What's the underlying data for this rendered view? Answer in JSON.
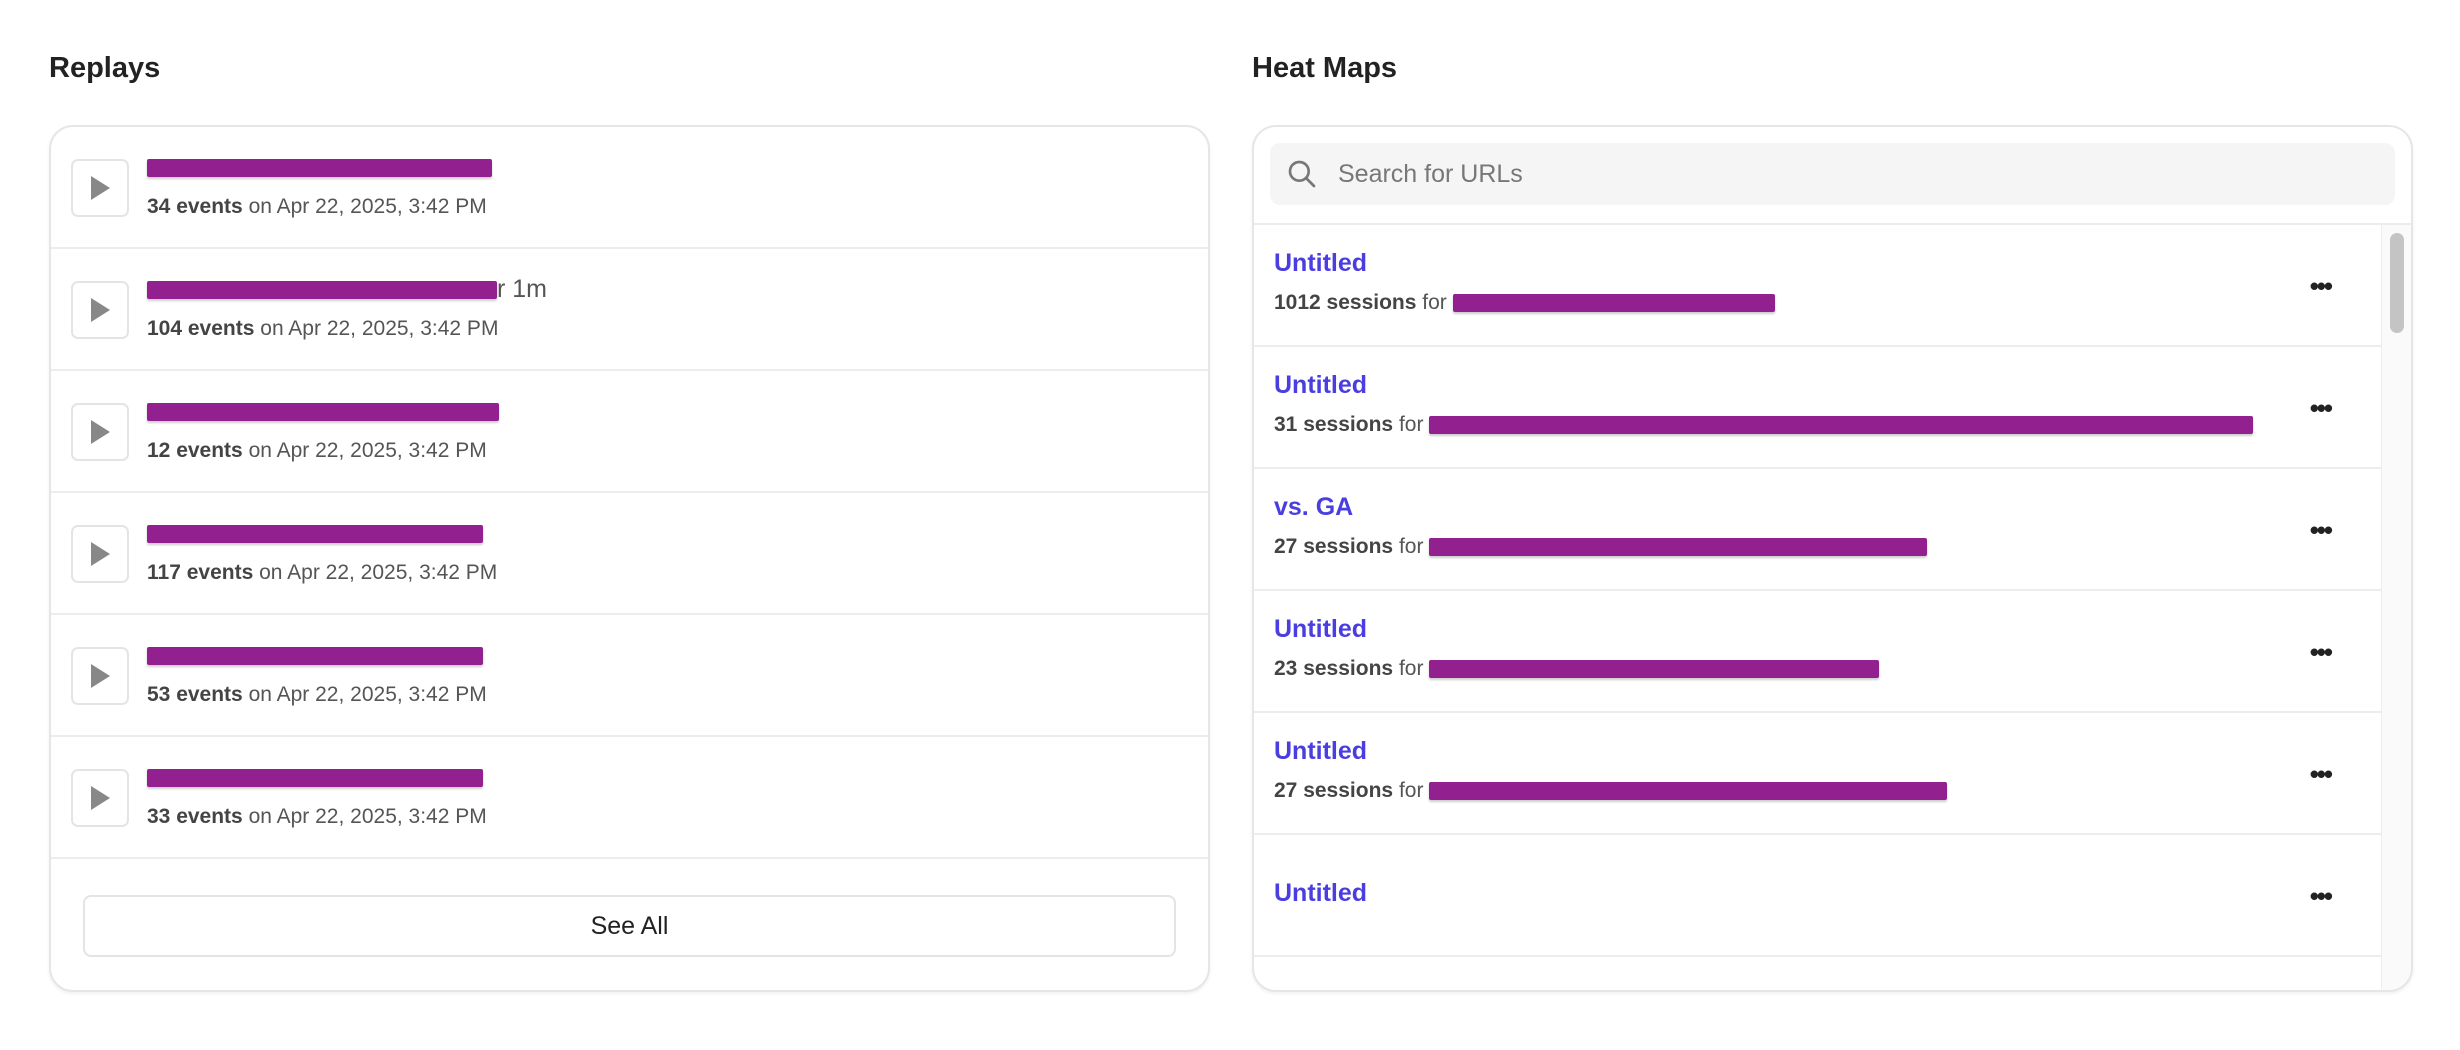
{
  "replays": {
    "title": "Replays",
    "rows": [
      {
        "name_suffix": "",
        "events": "34 events",
        "date": "on Apr 22, 2025, 3:42 PM"
      },
      {
        "name_suffix": "r 1m",
        "events": "104 events",
        "date": "on Apr 22, 2025, 3:42 PM"
      },
      {
        "name_suffix": "",
        "events": "12 events",
        "date": "on Apr 22, 2025, 3:42 PM"
      },
      {
        "name_suffix": "",
        "events": "117 events",
        "date": "on Apr 22, 2025, 3:42 PM"
      },
      {
        "name_suffix": "",
        "events": "53 events",
        "date": "on Apr 22, 2025, 3:42 PM"
      },
      {
        "name_suffix": "",
        "events": "33 events",
        "date": "on Apr 22, 2025, 3:42 PM"
      }
    ],
    "see_all_label": "See All"
  },
  "heatmaps": {
    "title": "Heat Maps",
    "search_placeholder": "Search for URLs",
    "rows": [
      {
        "title": "Untitled",
        "sessions": "1012 sessions",
        "for": "for"
      },
      {
        "title": "Untitled",
        "sessions": "31 sessions",
        "for": "for"
      },
      {
        "title": "vs. GA",
        "sessions": "27 sessions",
        "for": "for"
      },
      {
        "title": "Untitled",
        "sessions": "23 sessions",
        "for": "for"
      },
      {
        "title": "Untitled",
        "sessions": "27 sessions",
        "for": "for"
      },
      {
        "title": "Untitled",
        "sessions": "",
        "for": ""
      }
    ],
    "more_label": "•••"
  },
  "colors": {
    "link": "#4a3ee0",
    "redaction": "#93208f"
  }
}
